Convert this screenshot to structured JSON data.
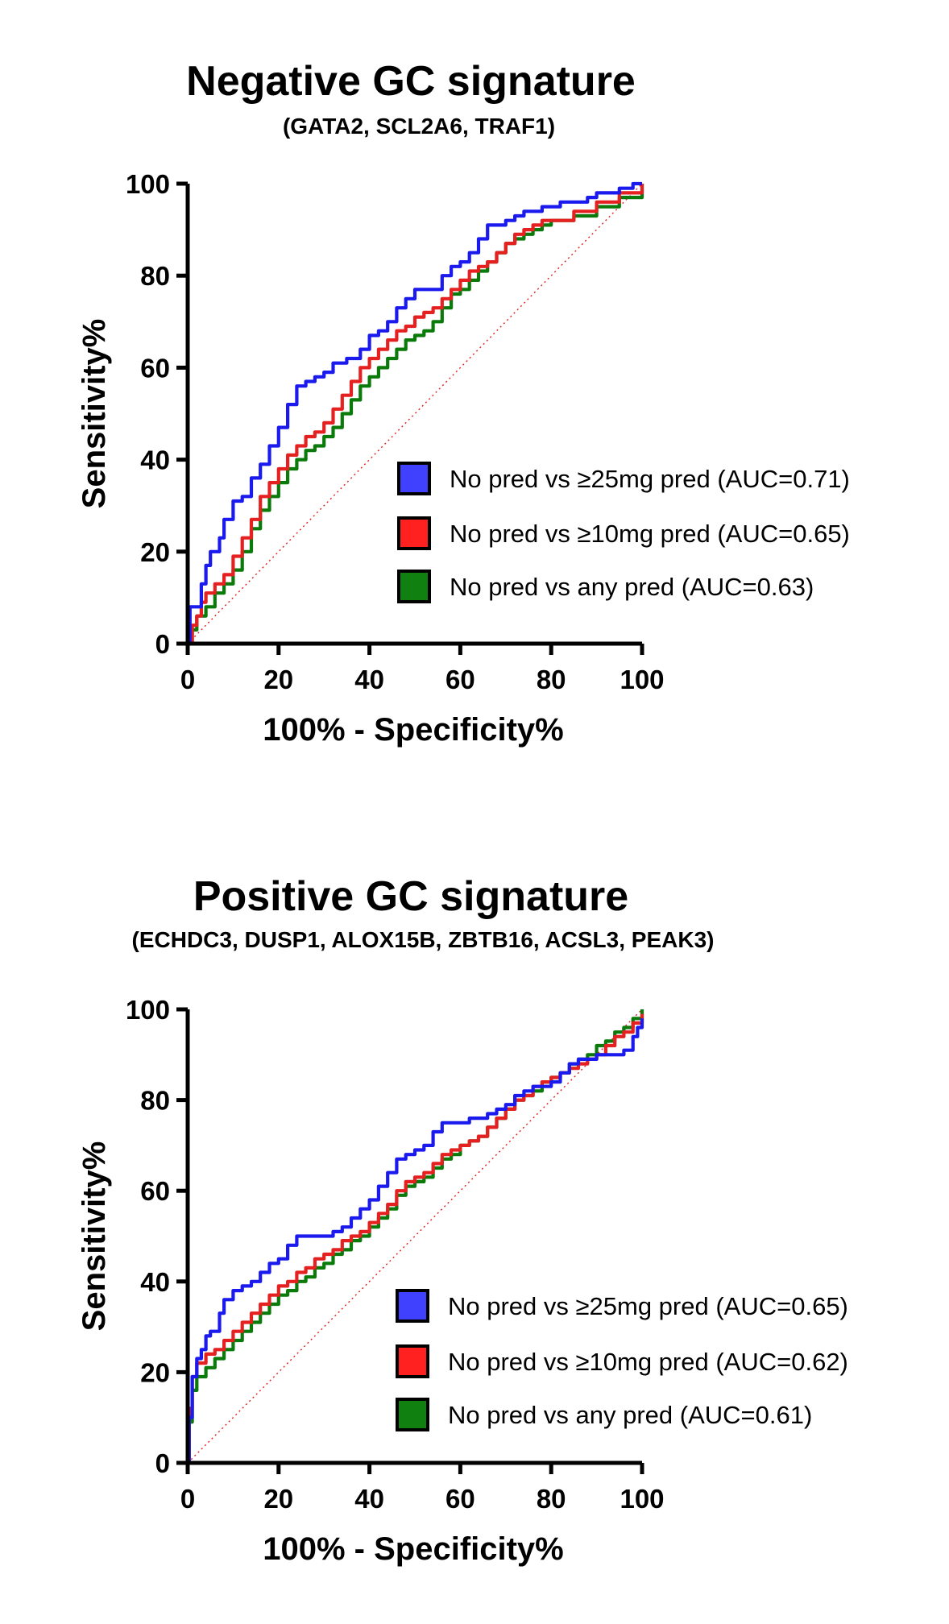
{
  "chart_data": [
    {
      "type": "line",
      "title": "Negative GC signature",
      "subtitle": "(GATA2, SCL2A6, TRAF1)",
      "xlabel": "100% - Specificity%",
      "ylabel": "Sensitivity%",
      "xlim": [
        0,
        100
      ],
      "ylim": [
        0,
        100
      ],
      "xticks": [
        "0",
        "20",
        "40",
        "60",
        "80",
        "100"
      ],
      "yticks": [
        "0",
        "20",
        "40",
        "60",
        "80",
        "100"
      ],
      "reference_line": {
        "x": [
          0,
          100
        ],
        "y": [
          0,
          100
        ],
        "color": "#e02020"
      },
      "series": [
        {
          "name": "No pred vs ≥25mg pred (AUC=0.71)",
          "color": "#1a1aee",
          "swatch": "#4040ff",
          "x": [
            0,
            0.5,
            2,
            3,
            4,
            5,
            7,
            8,
            10,
            12,
            14,
            16,
            18,
            20,
            22,
            24,
            26,
            28,
            30,
            32,
            35,
            38,
            40,
            42,
            44,
            46,
            48,
            50,
            52,
            54,
            56,
            58,
            60,
            62,
            64,
            66,
            68,
            70,
            72,
            74,
            76,
            78,
            80,
            82,
            85,
            88,
            90,
            92,
            95,
            98,
            100
          ],
          "y": [
            0,
            8,
            8,
            13,
            17,
            20,
            23,
            27,
            31,
            32,
            36,
            39,
            43,
            47,
            52,
            56,
            57,
            58,
            59,
            61,
            62,
            64,
            67,
            68,
            70,
            73,
            75,
            77,
            77,
            77,
            80,
            82,
            83,
            85,
            88,
            91,
            91,
            92,
            93,
            94,
            94,
            95,
            95,
            96,
            96,
            97,
            98,
            98,
            99,
            100,
            100
          ]
        },
        {
          "name": "No pred vs ≥10mg pred (AUC=0.65)",
          "color": "#e52020",
          "swatch": "#ff2020",
          "x": [
            0,
            1,
            2,
            3,
            4,
            6,
            8,
            10,
            12,
            14,
            16,
            18,
            20,
            22,
            24,
            26,
            28,
            30,
            32,
            34,
            36,
            38,
            40,
            42,
            44,
            46,
            48,
            50,
            52,
            54,
            56,
            58,
            60,
            62,
            64,
            66,
            68,
            70,
            72,
            74,
            76,
            78,
            80,
            85,
            90,
            95,
            100
          ],
          "y": [
            0,
            4,
            6,
            9,
            11,
            13,
            15,
            19,
            23,
            27,
            32,
            35,
            38,
            41,
            43,
            45,
            46,
            48,
            51,
            54,
            57,
            60,
            62,
            64,
            66,
            68,
            69,
            71,
            72,
            73,
            75,
            77,
            79,
            81,
            82,
            83,
            85,
            87,
            89,
            90,
            91,
            92,
            92,
            94,
            96,
            98,
            100
          ]
        },
        {
          "name": "No pred vs any pred (AUC=0.63)",
          "color": "#0a7a0a",
          "swatch": "#108010",
          "x": [
            0,
            1,
            2,
            4,
            6,
            8,
            10,
            12,
            14,
            16,
            18,
            20,
            22,
            24,
            26,
            28,
            30,
            32,
            34,
            36,
            38,
            40,
            42,
            44,
            46,
            48,
            50,
            52,
            54,
            56,
            58,
            60,
            62,
            64,
            66,
            68,
            70,
            72,
            74,
            76,
            78,
            80,
            85,
            90,
            95,
            100
          ],
          "y": [
            0,
            3,
            6,
            8,
            11,
            13,
            16,
            20,
            25,
            29,
            32,
            35,
            38,
            40,
            42,
            43,
            45,
            47,
            50,
            53,
            56,
            58,
            60,
            62,
            64,
            66,
            67,
            68,
            70,
            73,
            76,
            77,
            79,
            81,
            83,
            85,
            87,
            88,
            89,
            90,
            91,
            92,
            93,
            95,
            97,
            100
          ]
        }
      ],
      "legend_position": "lower-right"
    },
    {
      "type": "line",
      "title": "Positive GC signature",
      "subtitle": "(ECHDC3, DUSP1, ALOX15B, ZBTB16, ACSL3, PEAK3)",
      "xlabel": "100% - Specificity%",
      "ylabel": "Sensitivity%",
      "xlim": [
        0,
        100
      ],
      "ylim": [
        0,
        100
      ],
      "xticks": [
        "0",
        "20",
        "40",
        "60",
        "80",
        "100"
      ],
      "yticks": [
        "0",
        "20",
        "40",
        "60",
        "80",
        "100"
      ],
      "reference_line": {
        "x": [
          0,
          100
        ],
        "y": [
          0,
          100
        ],
        "color": "#e02020"
      },
      "series": [
        {
          "name": "No pred vs ≥25mg pred (AUC=0.65)",
          "color": "#1a1aee",
          "swatch": "#4040ff",
          "x": [
            0,
            0.3,
            1,
            2,
            3,
            4,
            5,
            7,
            8,
            10,
            12,
            14,
            16,
            18,
            20,
            22,
            24,
            26,
            28,
            30,
            32,
            34,
            36,
            38,
            40,
            42,
            44,
            46,
            48,
            50,
            52,
            54,
            56,
            58,
            60,
            62,
            64,
            66,
            68,
            70,
            72,
            74,
            76,
            78,
            80,
            82,
            84,
            86,
            88,
            90,
            92,
            94,
            96,
            98,
            99,
            100
          ],
          "y": [
            0,
            10,
            19,
            23,
            25,
            28,
            29,
            33,
            36,
            38,
            39,
            40,
            42,
            44,
            45,
            48,
            50,
            50,
            50,
            50,
            51,
            52,
            54,
            56,
            58,
            61,
            64,
            67,
            68,
            69,
            70,
            73,
            75,
            75,
            75,
            76,
            76,
            77,
            78,
            79,
            81,
            82,
            83,
            83,
            84,
            86,
            88,
            89,
            89,
            90,
            90,
            90,
            91,
            94,
            96,
            98
          ]
        },
        {
          "name": "No pred vs ≥10mg pred (AUC=0.62)",
          "color": "#e52020",
          "swatch": "#ff2020",
          "x": [
            0,
            0.3,
            1,
            2,
            4,
            6,
            8,
            10,
            12,
            14,
            16,
            18,
            20,
            22,
            24,
            26,
            28,
            30,
            32,
            34,
            36,
            38,
            40,
            42,
            44,
            46,
            48,
            50,
            52,
            54,
            56,
            58,
            60,
            62,
            64,
            66,
            68,
            70,
            72,
            74,
            76,
            78,
            80,
            82,
            84,
            86,
            88,
            90,
            92,
            94,
            96,
            98,
            100
          ],
          "y": [
            0,
            12,
            19,
            22,
            24,
            25,
            27,
            29,
            31,
            33,
            35,
            37,
            39,
            40,
            42,
            43,
            45,
            46,
            47,
            49,
            50,
            51,
            53,
            55,
            57,
            60,
            62,
            63,
            64,
            66,
            68,
            69,
            70,
            71,
            72,
            74,
            76,
            78,
            80,
            81,
            83,
            84,
            85,
            86,
            87,
            88,
            89,
            90,
            92,
            94,
            95,
            97,
            99
          ]
        },
        {
          "name": "No pred vs any pred (AUC=0.61)",
          "color": "#0a7a0a",
          "swatch": "#108010",
          "x": [
            0,
            0.3,
            1,
            2,
            4,
            6,
            8,
            10,
            12,
            14,
            16,
            18,
            20,
            22,
            24,
            26,
            28,
            30,
            32,
            34,
            36,
            38,
            40,
            42,
            44,
            46,
            48,
            50,
            52,
            54,
            56,
            58,
            60,
            62,
            64,
            66,
            68,
            70,
            72,
            74,
            76,
            78,
            80,
            82,
            84,
            86,
            88,
            90,
            92,
            94,
            96,
            98,
            100
          ],
          "y": [
            0,
            9,
            16,
            19,
            21,
            23,
            25,
            27,
            29,
            31,
            33,
            35,
            37,
            38,
            40,
            41,
            43,
            44,
            46,
            47,
            49,
            50,
            52,
            54,
            56,
            59,
            61,
            62,
            63,
            65,
            67,
            68,
            70,
            71,
            72,
            74,
            76,
            78,
            80,
            81,
            82,
            84,
            85,
            86,
            88,
            89,
            90,
            92,
            93,
            95,
            96,
            98,
            100
          ]
        }
      ],
      "legend_position": "lower-right"
    }
  ]
}
